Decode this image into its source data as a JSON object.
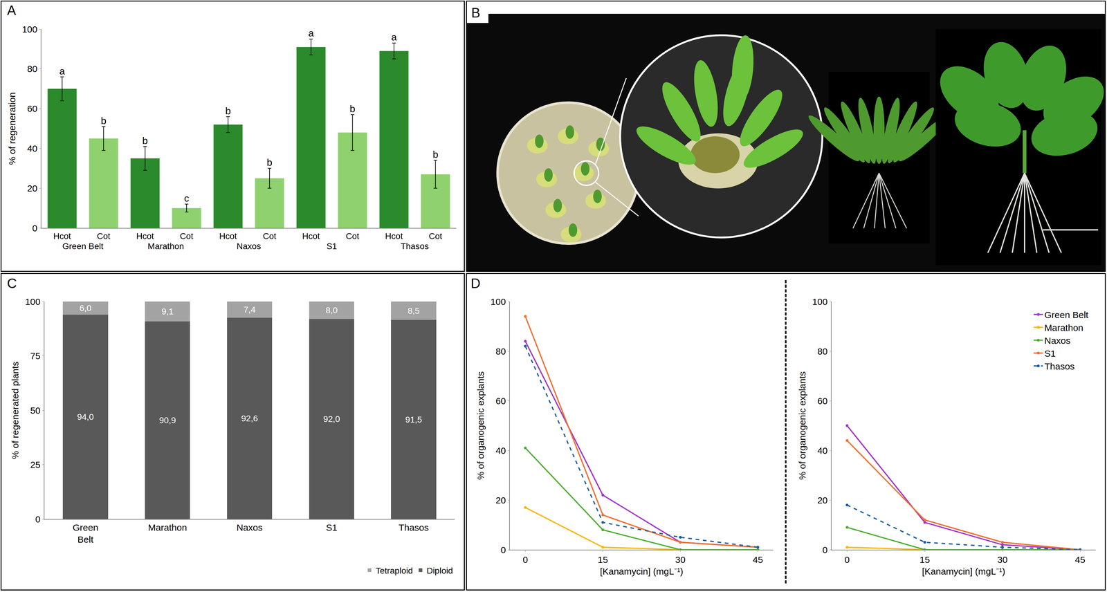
{
  "chart_data": [
    {
      "type": "bar",
      "title": "A",
      "y_label": "% of regeneration",
      "groups": [
        "Green Belt",
        "Green Belt",
        "Marathon",
        "Marathon",
        "Naxos",
        "Naxos",
        "S1",
        "S1",
        "Thasos",
        "Thasos"
      ],
      "categories": [
        "Hcot",
        "Cot",
        "Hcot",
        "Cot",
        "Hcot",
        "Cot",
        "Hcot",
        "Cot",
        "Hcot",
        "Cot"
      ],
      "values": [
        70,
        45,
        35,
        10,
        52,
        25,
        91,
        48,
        89,
        27
      ],
      "errors": [
        6,
        6,
        6,
        2,
        4,
        5,
        4,
        9,
        4,
        7
      ],
      "letters": [
        "a",
        "b",
        "b",
        "c",
        "b",
        "b",
        "a",
        "b",
        "a",
        "b"
      ],
      "colors": [
        "#2b8a2b",
        "#8fd16f",
        "#2b8a2b",
        "#8fd16f",
        "#2b8a2b",
        "#8fd16f",
        "#2b8a2b",
        "#8fd16f",
        "#2b8a2b",
        "#8fd16f"
      ],
      "ylim": [
        0,
        100
      ],
      "yticks": [
        0,
        20,
        40,
        60,
        80,
        100
      ],
      "grid": false
    },
    {
      "type": "image",
      "title": "B"
    },
    {
      "type": "bar",
      "title": "C",
      "y_label": "% of regenerated plants",
      "stacked": true,
      "data_labels": true,
      "categories": [
        "Green Belt",
        "Marathon",
        "Naxos",
        "S1",
        "Thasos"
      ],
      "series": [
        {
          "name": "Diploid",
          "color": "#595959",
          "values": [
            94.0,
            90.9,
            92.6,
            92.0,
            91.5
          ],
          "value_labels": [
            "94,0",
            "90,9",
            "92,6",
            "92,0",
            "91,5"
          ]
        },
        {
          "name": "Tetraploid",
          "color": "#a3a3a3",
          "values": [
            6.0,
            9.1,
            7.4,
            8.0,
            8.5
          ],
          "value_labels": [
            "6,0",
            "9,1",
            "7,4",
            "8,0",
            "8,5"
          ]
        }
      ],
      "legend": "bottom right",
      "ylim": [
        0,
        100
      ],
      "yticks": [
        0,
        25,
        50,
        75,
        100
      ],
      "grid": false
    },
    {
      "type": "line",
      "title": "D",
      "x_label": "[Kanamycin] (mgL⁻¹)",
      "y_label": "% of organogenic explants",
      "x": [
        0,
        15,
        30,
        45
      ],
      "series": [
        {
          "name": "Green Belt",
          "color": "#a235c9",
          "marker": "circle",
          "line_style": "solid",
          "values": [
            84,
            22,
            3,
            1
          ]
        },
        {
          "name": "Marathon",
          "color": "#f5b800",
          "marker": "circle",
          "line_style": "solid",
          "values": [
            17,
            1,
            0,
            0
          ]
        },
        {
          "name": "Naxos",
          "color": "#4caf2f",
          "marker": "circle",
          "line_style": "solid",
          "values": [
            41,
            8,
            0,
            0
          ]
        },
        {
          "name": "S1",
          "color": "#f07030",
          "marker": "circle",
          "line_style": "solid",
          "values": [
            94,
            14,
            3,
            1
          ]
        },
        {
          "name": "Thasos",
          "color": "#1f5f9f",
          "marker": "circle",
          "line_style": "dash",
          "values": [
            82,
            11,
            5,
            1
          ]
        }
      ],
      "xlim": [
        -3,
        48
      ],
      "xticks": [
        0,
        15,
        30,
        45
      ],
      "ylim": [
        0,
        100
      ],
      "yticks": [
        0,
        20,
        40,
        60,
        80,
        100
      ],
      "grid": false
    },
    {
      "type": "line",
      "x_label": "[Kanamycin] (mgL⁻¹)",
      "y_label": "% of organogenic explants",
      "x": [
        0,
        15,
        30,
        45
      ],
      "series": [
        {
          "name": "Green Belt",
          "color": "#a235c9",
          "marker": "circle",
          "line_style": "solid",
          "values": [
            50,
            11,
            2,
            0
          ]
        },
        {
          "name": "Marathon",
          "color": "#f5b800",
          "marker": "circle",
          "line_style": "solid",
          "values": [
            1,
            0,
            0,
            0
          ]
        },
        {
          "name": "Naxos",
          "color": "#4caf2f",
          "marker": "circle",
          "line_style": "solid",
          "values": [
            9,
            0,
            0,
            0
          ]
        },
        {
          "name": "S1",
          "color": "#f07030",
          "marker": "circle",
          "line_style": "solid",
          "values": [
            44,
            12,
            3,
            0
          ]
        },
        {
          "name": "Thasos",
          "color": "#1f5f9f",
          "marker": "circle",
          "line_style": "dash",
          "values": [
            18,
            3,
            1,
            0
          ]
        }
      ],
      "legend": "top right",
      "xlim": [
        -3,
        48
      ],
      "xticks": [
        0,
        15,
        30,
        45
      ],
      "ylim": [
        0,
        100
      ],
      "yticks": [
        0,
        20,
        40,
        60,
        80,
        100
      ],
      "grid": false
    }
  ]
}
